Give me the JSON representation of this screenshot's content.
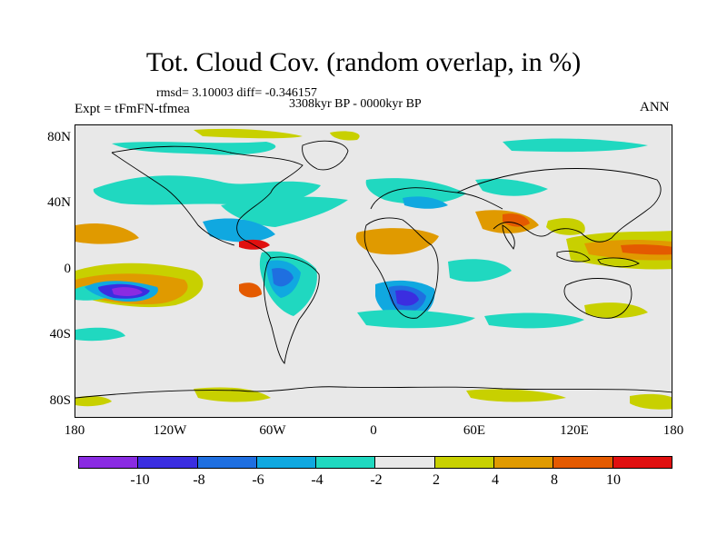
{
  "title": "Tot. Cloud Cov. (random overlap, in %)",
  "stats": "rmsd= 3.10003 diff= -0.346157",
  "period": "3308kyr BP - 0000kyr BP",
  "experiment": "Expt = tFmFN-tfmea",
  "season": "ANN",
  "lat_ticks": [
    "80N",
    "40N",
    "0",
    "40S",
    "80S"
  ],
  "lon_ticks": [
    "180",
    "120W",
    "60W",
    "0",
    "60E",
    "120E",
    "180"
  ],
  "colorbar": {
    "colors": [
      "#8a2be2",
      "#3b2ee0",
      "#1f6fe0",
      "#10a8e0",
      "#20d8c0",
      "#e8e8e8",
      "#c8d000",
      "#e09a00",
      "#e45a00",
      "#e01010"
    ],
    "labels": [
      "-10",
      "-8",
      "-6",
      "-4",
      "-2",
      "2",
      "4",
      "8",
      "10"
    ]
  }
}
